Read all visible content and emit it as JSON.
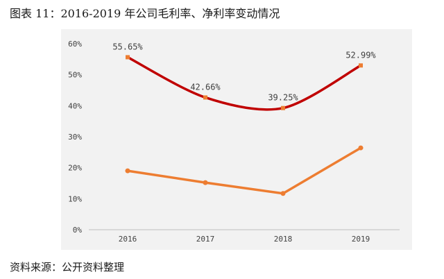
{
  "figure_title": "图表 11：2016-2019 年公司毛利率、净利率变动情况",
  "source": "资料来源：公开资料整理",
  "chart_data": {
    "type": "line",
    "categories": [
      "2016",
      "2017",
      "2018",
      "2019"
    ],
    "y_ticks": [
      "0%",
      "10%",
      "20%",
      "30%",
      "40%",
      "50%",
      "60%"
    ],
    "ylim": [
      0,
      60
    ],
    "grid": false,
    "legend": "none",
    "series": [
      {
        "values": [
          55.65,
          42.66,
          39.25,
          52.99
        ],
        "labels": [
          "55.65%",
          "42.66%",
          "39.25%",
          "52.99%"
        ],
        "line_color": "#c00000",
        "marker_color": "#ed7d31",
        "smooth": true
      },
      {
        "values": [
          19.0,
          15.2,
          11.7,
          26.4
        ],
        "line_color": "#ed7d31",
        "marker_color": "#ed7d31",
        "smooth": false
      }
    ]
  }
}
